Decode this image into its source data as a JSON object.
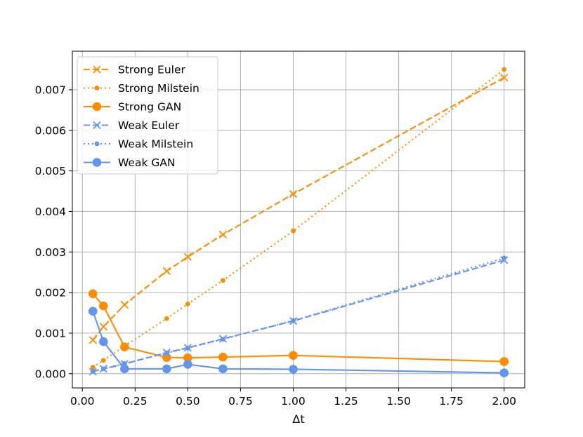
{
  "chart_data": {
    "type": "line",
    "title": "",
    "xlabel": "Δt",
    "ylabel": "",
    "xlim": [
      -0.0475,
      2.0975
    ],
    "ylim": [
      -0.00035,
      0.00795
    ],
    "grid": true,
    "legend_position": "top-left",
    "x_ticks": [
      0.0,
      0.25,
      0.5,
      0.75,
      1.0,
      1.25,
      1.5,
      1.75,
      2.0
    ],
    "x_tick_labels": [
      "0.00",
      "0.25",
      "0.50",
      "0.75",
      "1.00",
      "1.25",
      "1.50",
      "1.75",
      "2.00"
    ],
    "y_ticks": [
      0.0,
      0.001,
      0.002,
      0.003,
      0.004,
      0.005,
      0.006,
      0.007
    ],
    "y_tick_labels": [
      "0.000",
      "0.001",
      "0.002",
      "0.003",
      "0.004",
      "0.005",
      "0.006",
      "0.007"
    ],
    "series": [
      {
        "name": "Strong Euler",
        "color": "#ff8c00",
        "linestyle": "dashed",
        "marker": "x",
        "x": [
          0.05,
          0.1,
          0.2,
          0.4,
          0.5,
          0.6667,
          1.0,
          2.0
        ],
        "y": [
          0.00083,
          0.00116,
          0.0017,
          0.00253,
          0.00288,
          0.00343,
          0.00443,
          0.0073
        ]
      },
      {
        "name": "Strong Milstein",
        "color": "#ff8c00",
        "linestyle": "dotted",
        "marker": "dot",
        "x": [
          0.05,
          0.1,
          0.2,
          0.4,
          0.5,
          0.6667,
          1.0,
          2.0
        ],
        "y": [
          0.00016,
          0.00033,
          0.00068,
          0.00136,
          0.00172,
          0.0023,
          0.00352,
          0.0075
        ]
      },
      {
        "name": "Strong GAN",
        "color": "#ff8c00",
        "linestyle": "solid",
        "marker": "circle",
        "x": [
          0.05,
          0.1,
          0.2,
          0.4,
          0.5,
          0.6667,
          1.0,
          2.0
        ],
        "y": [
          0.00197,
          0.00167,
          0.00066,
          0.0004,
          0.00039,
          0.00041,
          0.00045,
          0.0003
        ]
      },
      {
        "name": "Weak Euler",
        "color": "#6495ed",
        "linestyle": "dashed",
        "marker": "x",
        "x": [
          0.05,
          0.1,
          0.2,
          0.4,
          0.5,
          0.6667,
          1.0,
          2.0
        ],
        "y": [
          5e-05,
          0.00012,
          0.00024,
          0.00052,
          0.00064,
          0.00086,
          0.0013,
          0.0028
        ]
      },
      {
        "name": "Weak Milstein",
        "color": "#6495ed",
        "linestyle": "dotted",
        "marker": "dot",
        "x": [
          0.05,
          0.1,
          0.2,
          0.4,
          0.5,
          0.6667,
          1.0,
          2.0
        ],
        "y": [
          6e-05,
          0.00012,
          0.00025,
          0.00051,
          0.00063,
          0.00085,
          0.00131,
          0.00285
        ]
      },
      {
        "name": "Weak GAN",
        "color": "#6495ed",
        "linestyle": "solid",
        "marker": "circle",
        "x": [
          0.05,
          0.1,
          0.2,
          0.4,
          0.5,
          0.6667,
          1.0,
          2.0
        ],
        "y": [
          0.00154,
          0.00079,
          0.00012,
          0.00012,
          0.00023,
          0.00012,
          0.00011,
          2e-05
        ]
      }
    ]
  }
}
